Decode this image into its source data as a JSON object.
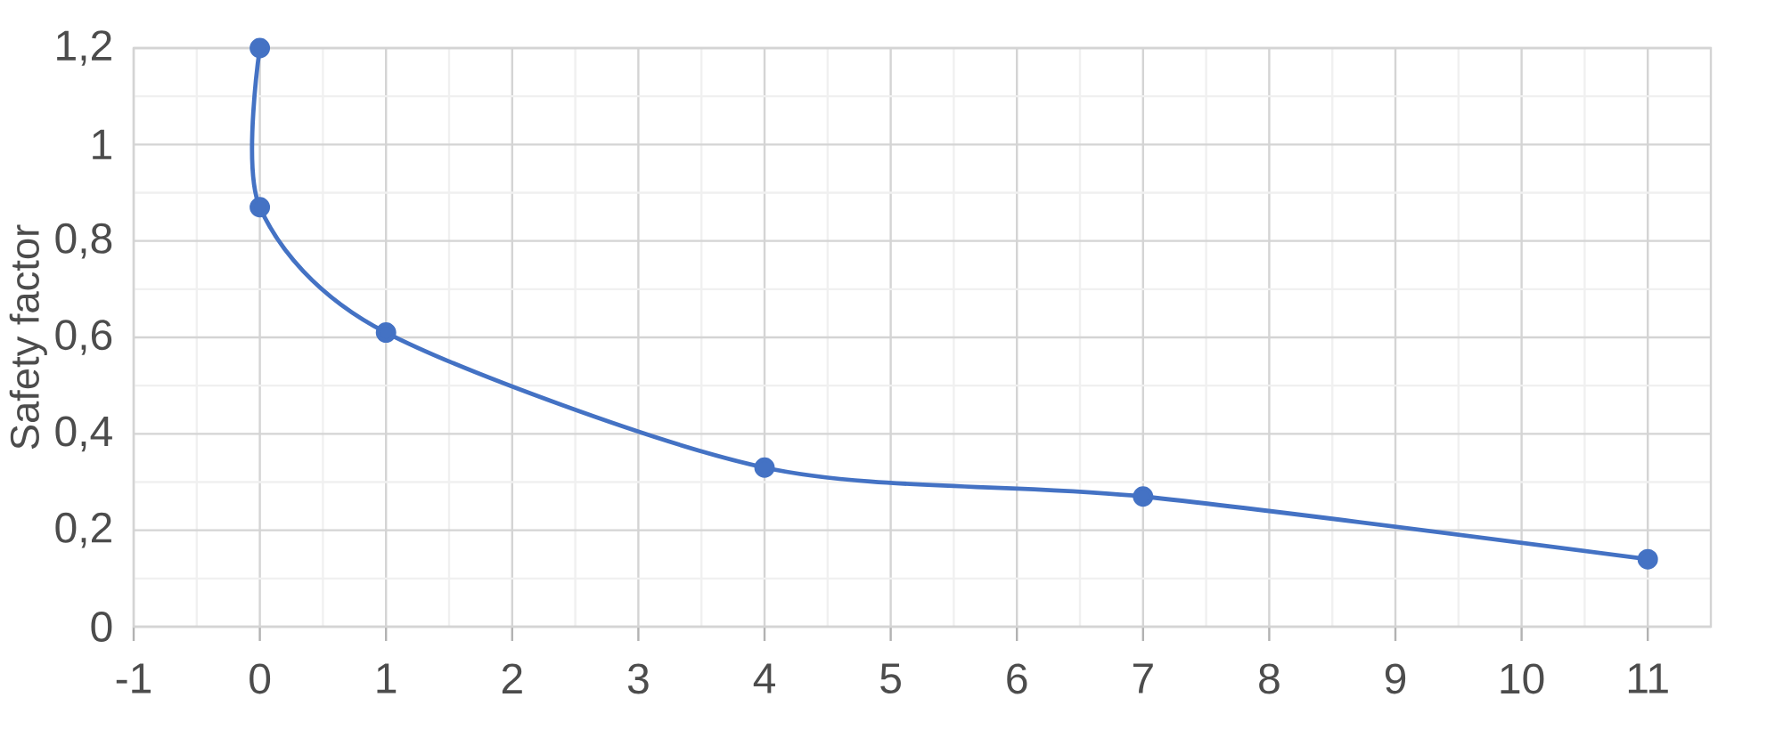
{
  "chart_data": {
    "type": "line",
    "ylabel": "Safety factor",
    "x": [
      0,
      0,
      1,
      4,
      7,
      11
    ],
    "series": [
      {
        "color": "#4472c4",
        "values": [
          1.2,
          0.87,
          0.61,
          0.33,
          0.27,
          0.14
        ]
      }
    ],
    "xlim": [
      -1,
      11.5
    ],
    "ylim": [
      0,
      1.2
    ],
    "xticks": [
      -1,
      0,
      1,
      2,
      3,
      4,
      5,
      6,
      7,
      8,
      9,
      10,
      11
    ],
    "yticks": [
      0,
      {
        "value": 0.2,
        "label": "0,2"
      },
      {
        "value": 0.4,
        "label": "0,4"
      },
      {
        "value": 0.6,
        "label": "0,6"
      },
      {
        "value": 0.8,
        "label": "0,8"
      },
      1,
      {
        "value": 1.2,
        "label": "1,2"
      }
    ],
    "grid": true,
    "marker": "circle",
    "line_style": "solid"
  }
}
